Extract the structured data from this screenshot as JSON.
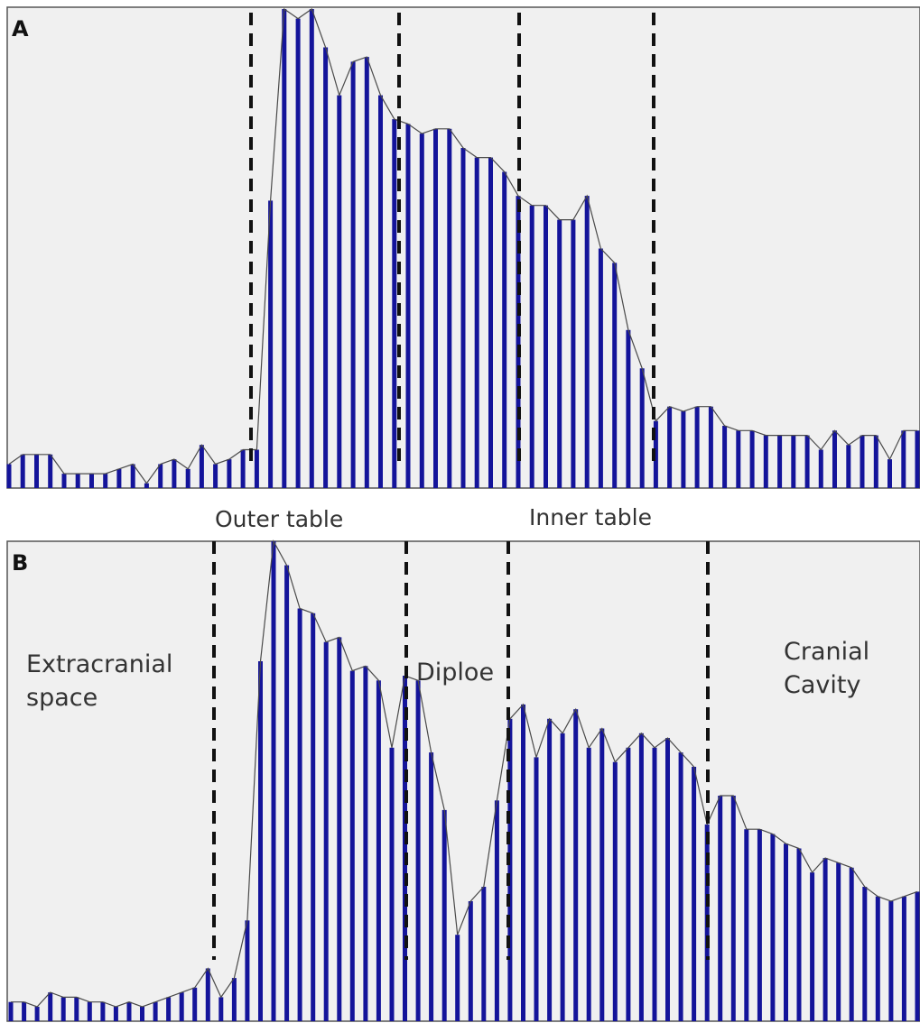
{
  "colors": {
    "bar": "#14149a",
    "line": "#4a4a4a",
    "panel_bg": "#f0f0f0",
    "border": "#555555",
    "divider": "#111111",
    "text": "#333333"
  },
  "chart_data": [
    {
      "type": "bar",
      "panel_label": "A",
      "ylim": [
        0,
        100
      ],
      "values": [
        5,
        7,
        7,
        7,
        3,
        3,
        3,
        3,
        4,
        5,
        1,
        5,
        6,
        4,
        9,
        5,
        6,
        8,
        8,
        60,
        100,
        98,
        100,
        92,
        82,
        89,
        90,
        82,
        77,
        76,
        74,
        75,
        75,
        71,
        69,
        69,
        66,
        61,
        59,
        59,
        56,
        56,
        61,
        50,
        47,
        33,
        25,
        14,
        17,
        16,
        17,
        17,
        13,
        12,
        12,
        11,
        11,
        11,
        11,
        8,
        12,
        9,
        11,
        11,
        6,
        12,
        12
      ],
      "boundaries": [
        "Outer table",
        "Inner table"
      ]
    },
    {
      "type": "bar",
      "panel_label": "B",
      "ylim": [
        0,
        100
      ],
      "values": [
        4,
        4,
        3,
        6,
        5,
        5,
        4,
        4,
        3,
        4,
        3,
        4,
        5,
        6,
        7,
        11,
        5,
        9,
        21,
        75,
        100,
        95,
        86,
        85,
        79,
        80,
        73,
        74,
        71,
        57,
        72,
        71,
        56,
        44,
        18,
        25,
        28,
        46,
        63,
        66,
        55,
        63,
        60,
        65,
        57,
        61,
        54,
        57,
        60,
        57,
        59,
        56,
        53,
        41,
        47,
        47,
        40,
        40,
        39,
        37,
        36,
        31,
        34,
        33,
        32,
        28,
        26,
        25,
        26,
        27
      ]
    }
  ],
  "labels": {
    "outer_table": "Outer table",
    "inner_table": "Inner table",
    "extracranial_line1": "Extracranial",
    "extracranial_line2": "space",
    "diploe": "Diploe",
    "cranial_line1": "Cranial",
    "cranial_line2": "Cavity"
  }
}
